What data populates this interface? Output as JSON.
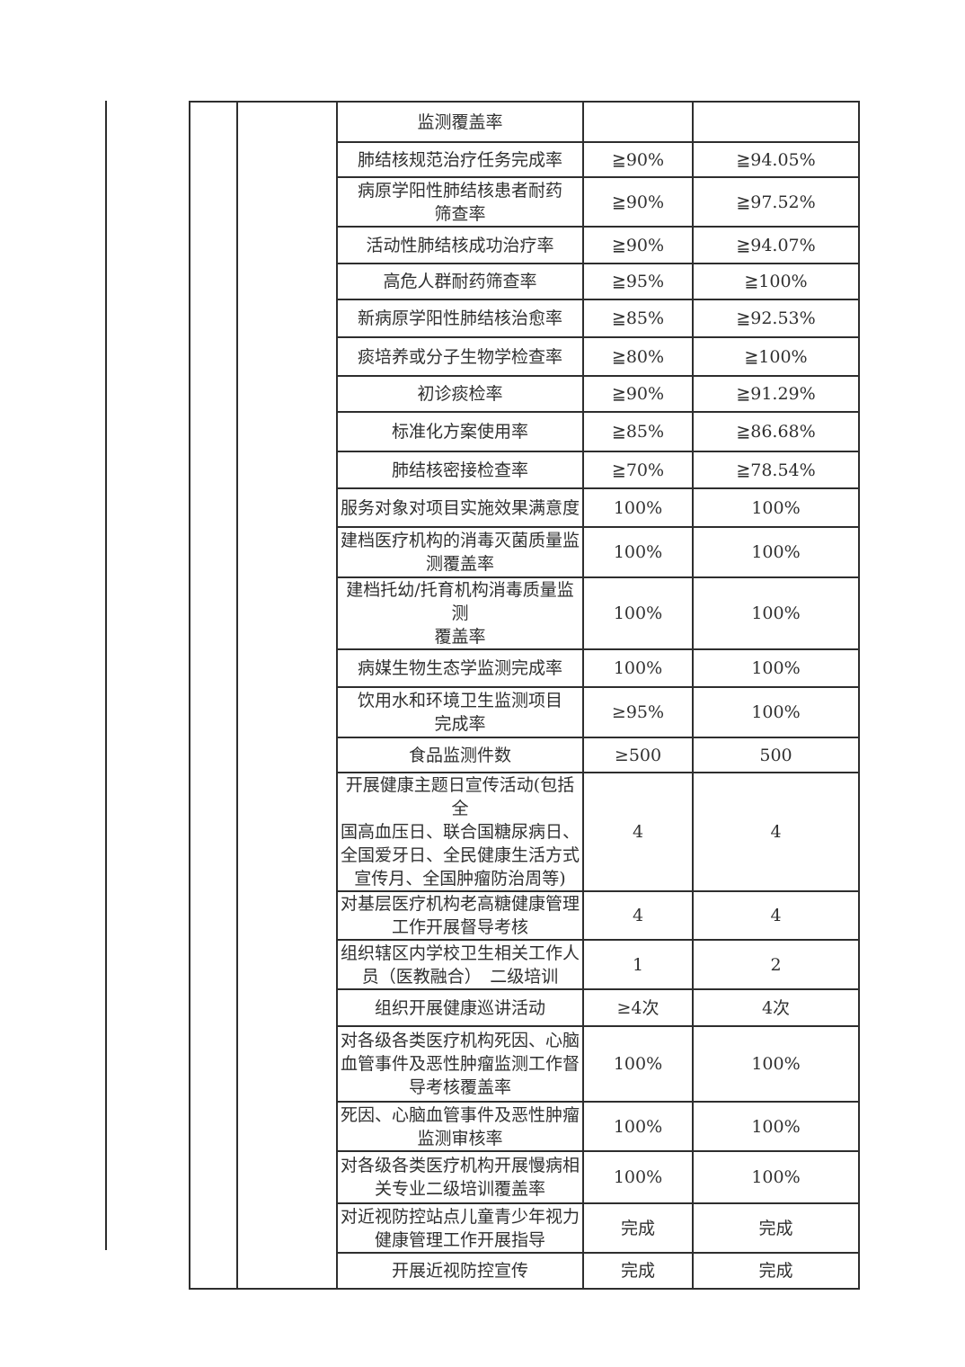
{
  "table": {
    "description_columns": [
      "gutter-1",
      "gutter-2",
      "indicator",
      "target",
      "actual"
    ],
    "rows": [
      {
        "indicator": "监测覆盖率",
        "target": "",
        "actual": ""
      },
      {
        "indicator": "肺结核规范治疗任务完成率",
        "target": "≧90%",
        "actual": "≧94.05%"
      },
      {
        "indicator": "病原学阳性肺结核患者耐药\n筛查率",
        "target": "≧90%",
        "actual": "≧97.52%"
      },
      {
        "indicator": "活动性肺结核成功治疗率",
        "target": "≧90%",
        "actual": "≧94.07%"
      },
      {
        "indicator": "高危人群耐药筛查率",
        "target": "≧95%",
        "actual": "≧100%"
      },
      {
        "indicator": "新病原学阳性肺结核治愈率",
        "target": "≧85%",
        "actual": "≧92.53%"
      },
      {
        "indicator": "痰培养或分子生物学检查率",
        "target": "≧80%",
        "actual": "≧100%"
      },
      {
        "indicator": "初诊痰检率",
        "target": "≧90%",
        "actual": "≧91.29%"
      },
      {
        "indicator": "标准化方案使用率",
        "target": "≧85%",
        "actual": "≧86.68%"
      },
      {
        "indicator": "肺结核密接检查率",
        "target": "≧70%",
        "actual": "≧78.54%"
      },
      {
        "indicator": "服务对象对项目实施效果满意度",
        "target": "100%",
        "actual": "100%"
      },
      {
        "indicator": "建档医疗机构的消毒灭菌质量监\n测覆盖率",
        "target": "100%",
        "actual": "100%"
      },
      {
        "indicator": "建档托幼/托育机构消毒质量监测\n覆盖率",
        "target": "100%",
        "actual": "100%"
      },
      {
        "indicator": "病媒生物生态学监测完成率",
        "target": "100%",
        "actual": "100%"
      },
      {
        "indicator": "饮用水和环境卫生监测项目\n完成率",
        "target": "≥95%",
        "actual": "100%"
      },
      {
        "indicator": "食品监测件数",
        "target": "≥500",
        "actual": "500"
      },
      {
        "indicator": "开展健康主题日宣传活动(包括全\n国高血压日、联合国糖尿病日、\n全国爱牙日、全民健康生活方式\n宣传月、全国肿瘤防治周等)",
        "target": "4",
        "actual": "4"
      },
      {
        "indicator": "对基层医疗机构老高糖健康管理\n工作开展督导考核",
        "target": "4",
        "actual": "4"
      },
      {
        "indicator": "组织辖区内学校卫生相关工作人\n员（医教融合）　二级培训",
        "target": "1",
        "actual": "2"
      },
      {
        "indicator": "组织开展健康巡讲活动",
        "target": "≥4次",
        "actual": "4次"
      },
      {
        "indicator": "对各级各类医疗机构死因、心脑\n血管事件及恶性肿瘤监测工作督\n导考核覆盖率",
        "target": "100%",
        "actual": "100%"
      },
      {
        "indicator": "死因、心脑血管事件及恶性肿瘤\n监测审核率",
        "target": "100%",
        "actual": "100%"
      },
      {
        "indicator": "对各级各类医疗机构开展慢病相\n关专业二级培训覆盖率",
        "target": "100%",
        "actual": "100%"
      },
      {
        "indicator": "对近视防控站点儿童青少年视力\n健康管理工作开展指导",
        "target": "完成",
        "actual": "完成"
      },
      {
        "indicator": "开展近视防控宣传",
        "target": "完成",
        "actual": "完成"
      }
    ]
  }
}
